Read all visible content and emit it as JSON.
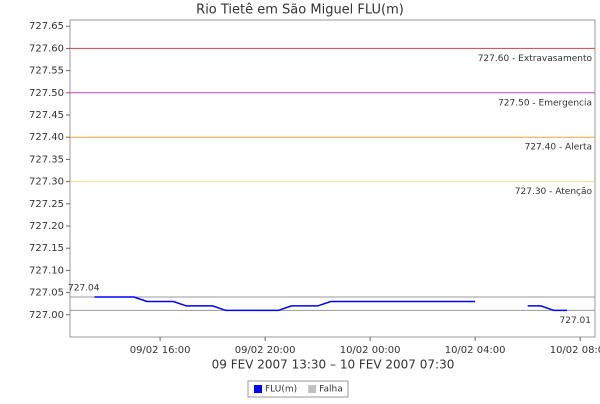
{
  "chart_data": {
    "type": "line",
    "title": "Rio Tietê em São Miguel FLU(m)",
    "x_label": "09 FEV 2007 13:30 – 10 FEV 2007 07:30",
    "x": [
      "09/02 13:30",
      "09/02 14:00",
      "09/02 14:30",
      "09/02 15:00",
      "09/02 15:30",
      "09/02 16:00",
      "09/02 16:30",
      "09/02 17:00",
      "09/02 17:30",
      "09/02 18:00",
      "09/02 18:30",
      "09/02 19:00",
      "09/02 19:30",
      "09/02 20:00",
      "09/02 20:30",
      "09/02 21:00",
      "09/02 21:30",
      "09/02 22:00",
      "09/02 22:30",
      "09/02 23:00",
      "09/02 23:30",
      "10/02 00:00",
      "10/02 00:30",
      "10/02 01:00",
      "10/02 01:30",
      "10/02 02:00",
      "10/02 02:30",
      "10/02 03:00",
      "10/02 03:30",
      "10/02 04:00",
      "10/02 04:30",
      "10/02 05:00",
      "10/02 05:30",
      "10/02 06:00",
      "10/02 06:30",
      "10/02 07:00",
      "10/02 07:30"
    ],
    "series": [
      {
        "name": "FLU(m)",
        "color": "#0000ff",
        "values": [
          727.04,
          727.04,
          727.04,
          727.04,
          727.03,
          727.03,
          727.03,
          727.02,
          727.02,
          727.02,
          727.01,
          727.01,
          727.01,
          727.01,
          727.01,
          727.02,
          727.02,
          727.02,
          727.03,
          727.03,
          727.03,
          727.03,
          727.03,
          727.03,
          727.03,
          727.03,
          727.03,
          727.03,
          727.03,
          727.03,
          null,
          null,
          null,
          727.02,
          727.02,
          727.01,
          727.01
        ]
      },
      {
        "name": "Falha",
        "color": "#c0c0c0",
        "values": [
          null,
          null,
          null,
          null,
          null,
          null,
          null,
          null,
          null,
          null,
          null,
          null,
          null,
          null,
          null,
          null,
          null,
          null,
          null,
          null,
          null,
          null,
          null,
          null,
          null,
          null,
          null,
          null,
          null,
          727.03,
          null,
          null,
          null,
          727.02,
          null,
          null,
          null
        ]
      }
    ],
    "xlim": [
      "09/02 12:34",
      "10/02 08:34"
    ],
    "xticks": [
      "09/02 16:00",
      "09/02 20:00",
      "10/02 00:00",
      "10/02 04:00",
      "10/02 08:00"
    ],
    "ylim": [
      726.95,
      727.664
    ],
    "yticks": [
      {
        "value": 727.0,
        "label": "727.00"
      },
      {
        "value": 727.05,
        "label": "727.05"
      },
      {
        "value": 727.1,
        "label": "727.10"
      },
      {
        "value": 727.15,
        "label": "727.15"
      },
      {
        "value": 727.2,
        "label": "727.20"
      },
      {
        "value": 727.25,
        "label": "727.25"
      },
      {
        "value": 727.3,
        "label": "727.30"
      },
      {
        "value": 727.35,
        "label": "727.35"
      },
      {
        "value": 727.4,
        "label": "727.40"
      },
      {
        "value": 727.45,
        "label": "727.45"
      },
      {
        "value": 727.5,
        "label": "727.50"
      },
      {
        "value": 727.55,
        "label": "727.55"
      },
      {
        "value": 727.6,
        "label": "727.60"
      },
      {
        "value": 727.65,
        "label": "727.65"
      }
    ],
    "thresholds": [
      {
        "value": 727.6,
        "label": "727.60 - Extravasamento",
        "color": "#d04040"
      },
      {
        "value": 727.5,
        "label": "727.50 - Emergencia",
        "color": "#c040c0"
      },
      {
        "value": 727.4,
        "label": "727.40 - Alerta",
        "color": "#f0a040"
      },
      {
        "value": 727.3,
        "label": "727.30 - Atenção",
        "color": "#e8e080"
      }
    ],
    "annotations": [
      {
        "value": 727.04,
        "label": "727.04"
      },
      {
        "value": 727.01,
        "label": "727.01"
      }
    ]
  }
}
